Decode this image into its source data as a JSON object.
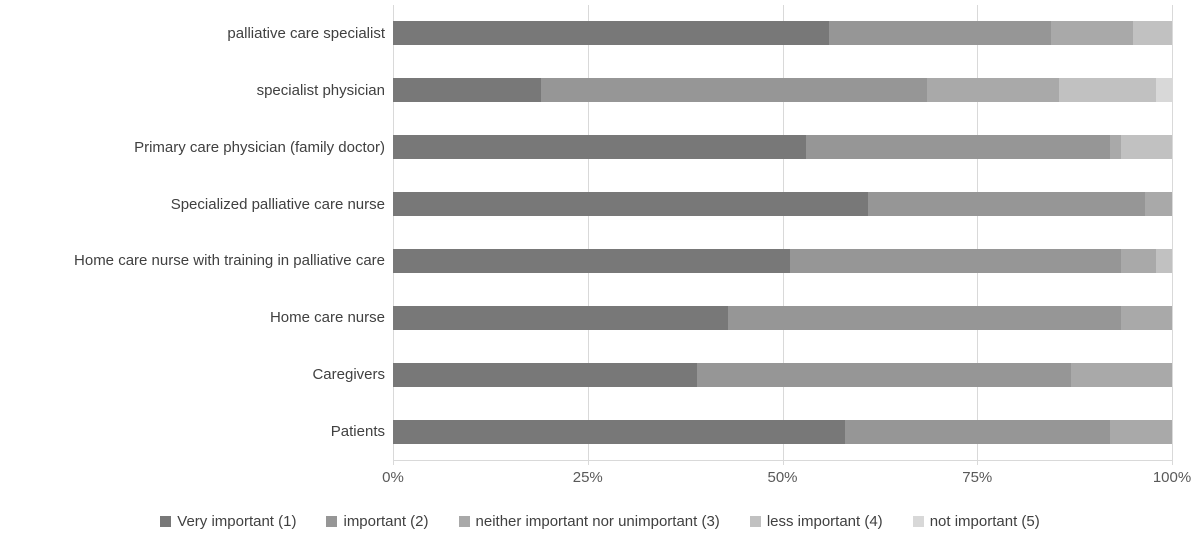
{
  "chart_data": {
    "type": "bar",
    "orientation": "horizontal",
    "stacked": true,
    "title": "",
    "unit": "percent",
    "categories": [
      "palliative care specialist",
      "specialist physician",
      "Primary care physician (family doctor)",
      "Specialized palliative care nurse",
      "Home care nurse with training in palliative care",
      "Home care nurse",
      "Caregivers",
      "Patients"
    ],
    "series": [
      {
        "name": "Very important (1)",
        "color": "#787878",
        "values": [
          56,
          19,
          53,
          61,
          51,
          43,
          39,
          58
        ]
      },
      {
        "name": "important (2)",
        "color": "#969696",
        "values": [
          28.5,
          49.5,
          39,
          35.5,
          42.5,
          50.5,
          48,
          34
        ]
      },
      {
        "name": "neither important nor unimportant (3)",
        "color": "#a9a9a9",
        "values": [
          10.5,
          17,
          1.5,
          3.5,
          4.5,
          6.5,
          13,
          8
        ]
      },
      {
        "name": "less important (4)",
        "color": "#c1c1c1",
        "values": [
          5,
          12.5,
          6.5,
          0,
          2,
          0,
          0,
          0
        ]
      },
      {
        "name": "not important (5)",
        "color": "#d8d8d8",
        "values": [
          0,
          2,
          0,
          0,
          0,
          0,
          0,
          0
        ]
      }
    ],
    "x_axis": {
      "min": 0,
      "max": 100,
      "tick_labels": [
        "0%",
        "25%",
        "50%",
        "75%",
        "100%"
      ]
    },
    "grid": "vertical",
    "gridline_color": "#d9d9d9",
    "legend_position": "bottom"
  }
}
